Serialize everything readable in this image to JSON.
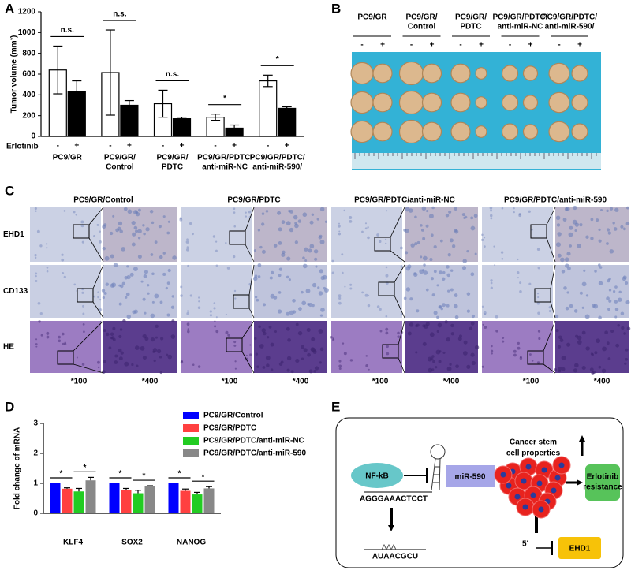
{
  "panel_labels": {
    "a": "A",
    "b": "B",
    "c": "C",
    "d": "D",
    "e": "E"
  },
  "chart_data": [
    {
      "type": "bar",
      "y_label": "Tumor volume (mm³)",
      "x_label": "Erlotinib",
      "categories": [
        [
          "PC9/GR"
        ],
        [
          "PC9/GR/",
          "Control"
        ],
        [
          "PC9/GR/",
          "PDTC"
        ],
        [
          "PC9/GR/PDTC/",
          "anti-miR-NC"
        ],
        [
          "PC9/GR/PDTC/",
          "anti-miR-590/"
        ]
      ],
      "series": [
        {
          "name": "-",
          "color": "#ffffff",
          "values": [
            640,
            615,
            315,
            185,
            535
          ],
          "errors": [
            230,
            410,
            130,
            30,
            55
          ]
        },
        {
          "name": "+",
          "color": "#000000",
          "values": [
            430,
            300,
            170,
            80,
            270
          ],
          "errors": [
            105,
            45,
            15,
            30,
            15
          ]
        }
      ],
      "annotations": [
        "n.s.",
        "n.s.",
        "n.s.",
        "*",
        "*"
      ],
      "ylim": [
        0,
        1200
      ],
      "yticks": [
        0,
        200,
        400,
        600,
        800,
        1000,
        1200
      ]
    },
    {
      "type": "bar",
      "y_label": "Fold change of mRNA",
      "categories": [
        "KLF4",
        "SOX2",
        "NANOG"
      ],
      "series": [
        {
          "name": "PC9/GR/Control",
          "color": "#0000ff",
          "values": [
            1,
            1,
            1
          ]
        },
        {
          "name": "PC9/GR/PDTC",
          "color": "#ff4040",
          "values": [
            0.82,
            0.78,
            0.75
          ],
          "errors": [
            0.03,
            0.05,
            0.06
          ]
        },
        {
          "name": "PC9/GR/PDTC/anti-miR-NC",
          "color": "#22cc22",
          "values": [
            0.73,
            0.67,
            0.63
          ],
          "errors": [
            0.1,
            0.1,
            0.07
          ]
        },
        {
          "name": "PC9/GR/PDTC/anti-miR-590",
          "color": "#888888",
          "values": [
            1.1,
            0.9,
            0.83
          ],
          "errors": [
            0.1,
            0.02,
            0.06
          ]
        }
      ],
      "annotations": [
        [
          "*",
          "*"
        ],
        [
          "*",
          "*"
        ],
        [
          "*",
          "*"
        ]
      ],
      "ylim": [
        0,
        3
      ],
      "yticks": [
        0,
        1,
        2,
        3
      ],
      "legend": "upper right"
    }
  ],
  "photo_panel": {
    "groups": [
      [
        "PC9/GR"
      ],
      [
        "PC9/GR/",
        "Control"
      ],
      [
        "PC9/GR/",
        "PDTC"
      ],
      [
        "PC9/GR/PDTC/",
        "anti-miR-NC"
      ],
      [
        "PC9/GR/PDTC/",
        "anti-miR-590/"
      ]
    ],
    "treatments": [
      "-",
      "+"
    ]
  },
  "histology_panel": {
    "columns": [
      "PC9/GR/Control",
      "PC9/GR/PDTC",
      "PC9/GR/PDTC/anti-miR-NC",
      "PC9/GR/PDTC/anti-miR-590"
    ],
    "rows": [
      "EHD1",
      "CD133",
      "HE"
    ],
    "magnifications": [
      "*100",
      "*400"
    ]
  },
  "diagram": {
    "nfkb": "NF-kB",
    "mir": "miR-590",
    "promoter": "AGGGAAACTCCT",
    "seed": "AUAACGCU",
    "five_prime": "5'",
    "csc": [
      "Cancer stem",
      "cell properties"
    ],
    "ehd1": "EHD1",
    "resistance": [
      "Erlotinib",
      "resistance"
    ]
  }
}
